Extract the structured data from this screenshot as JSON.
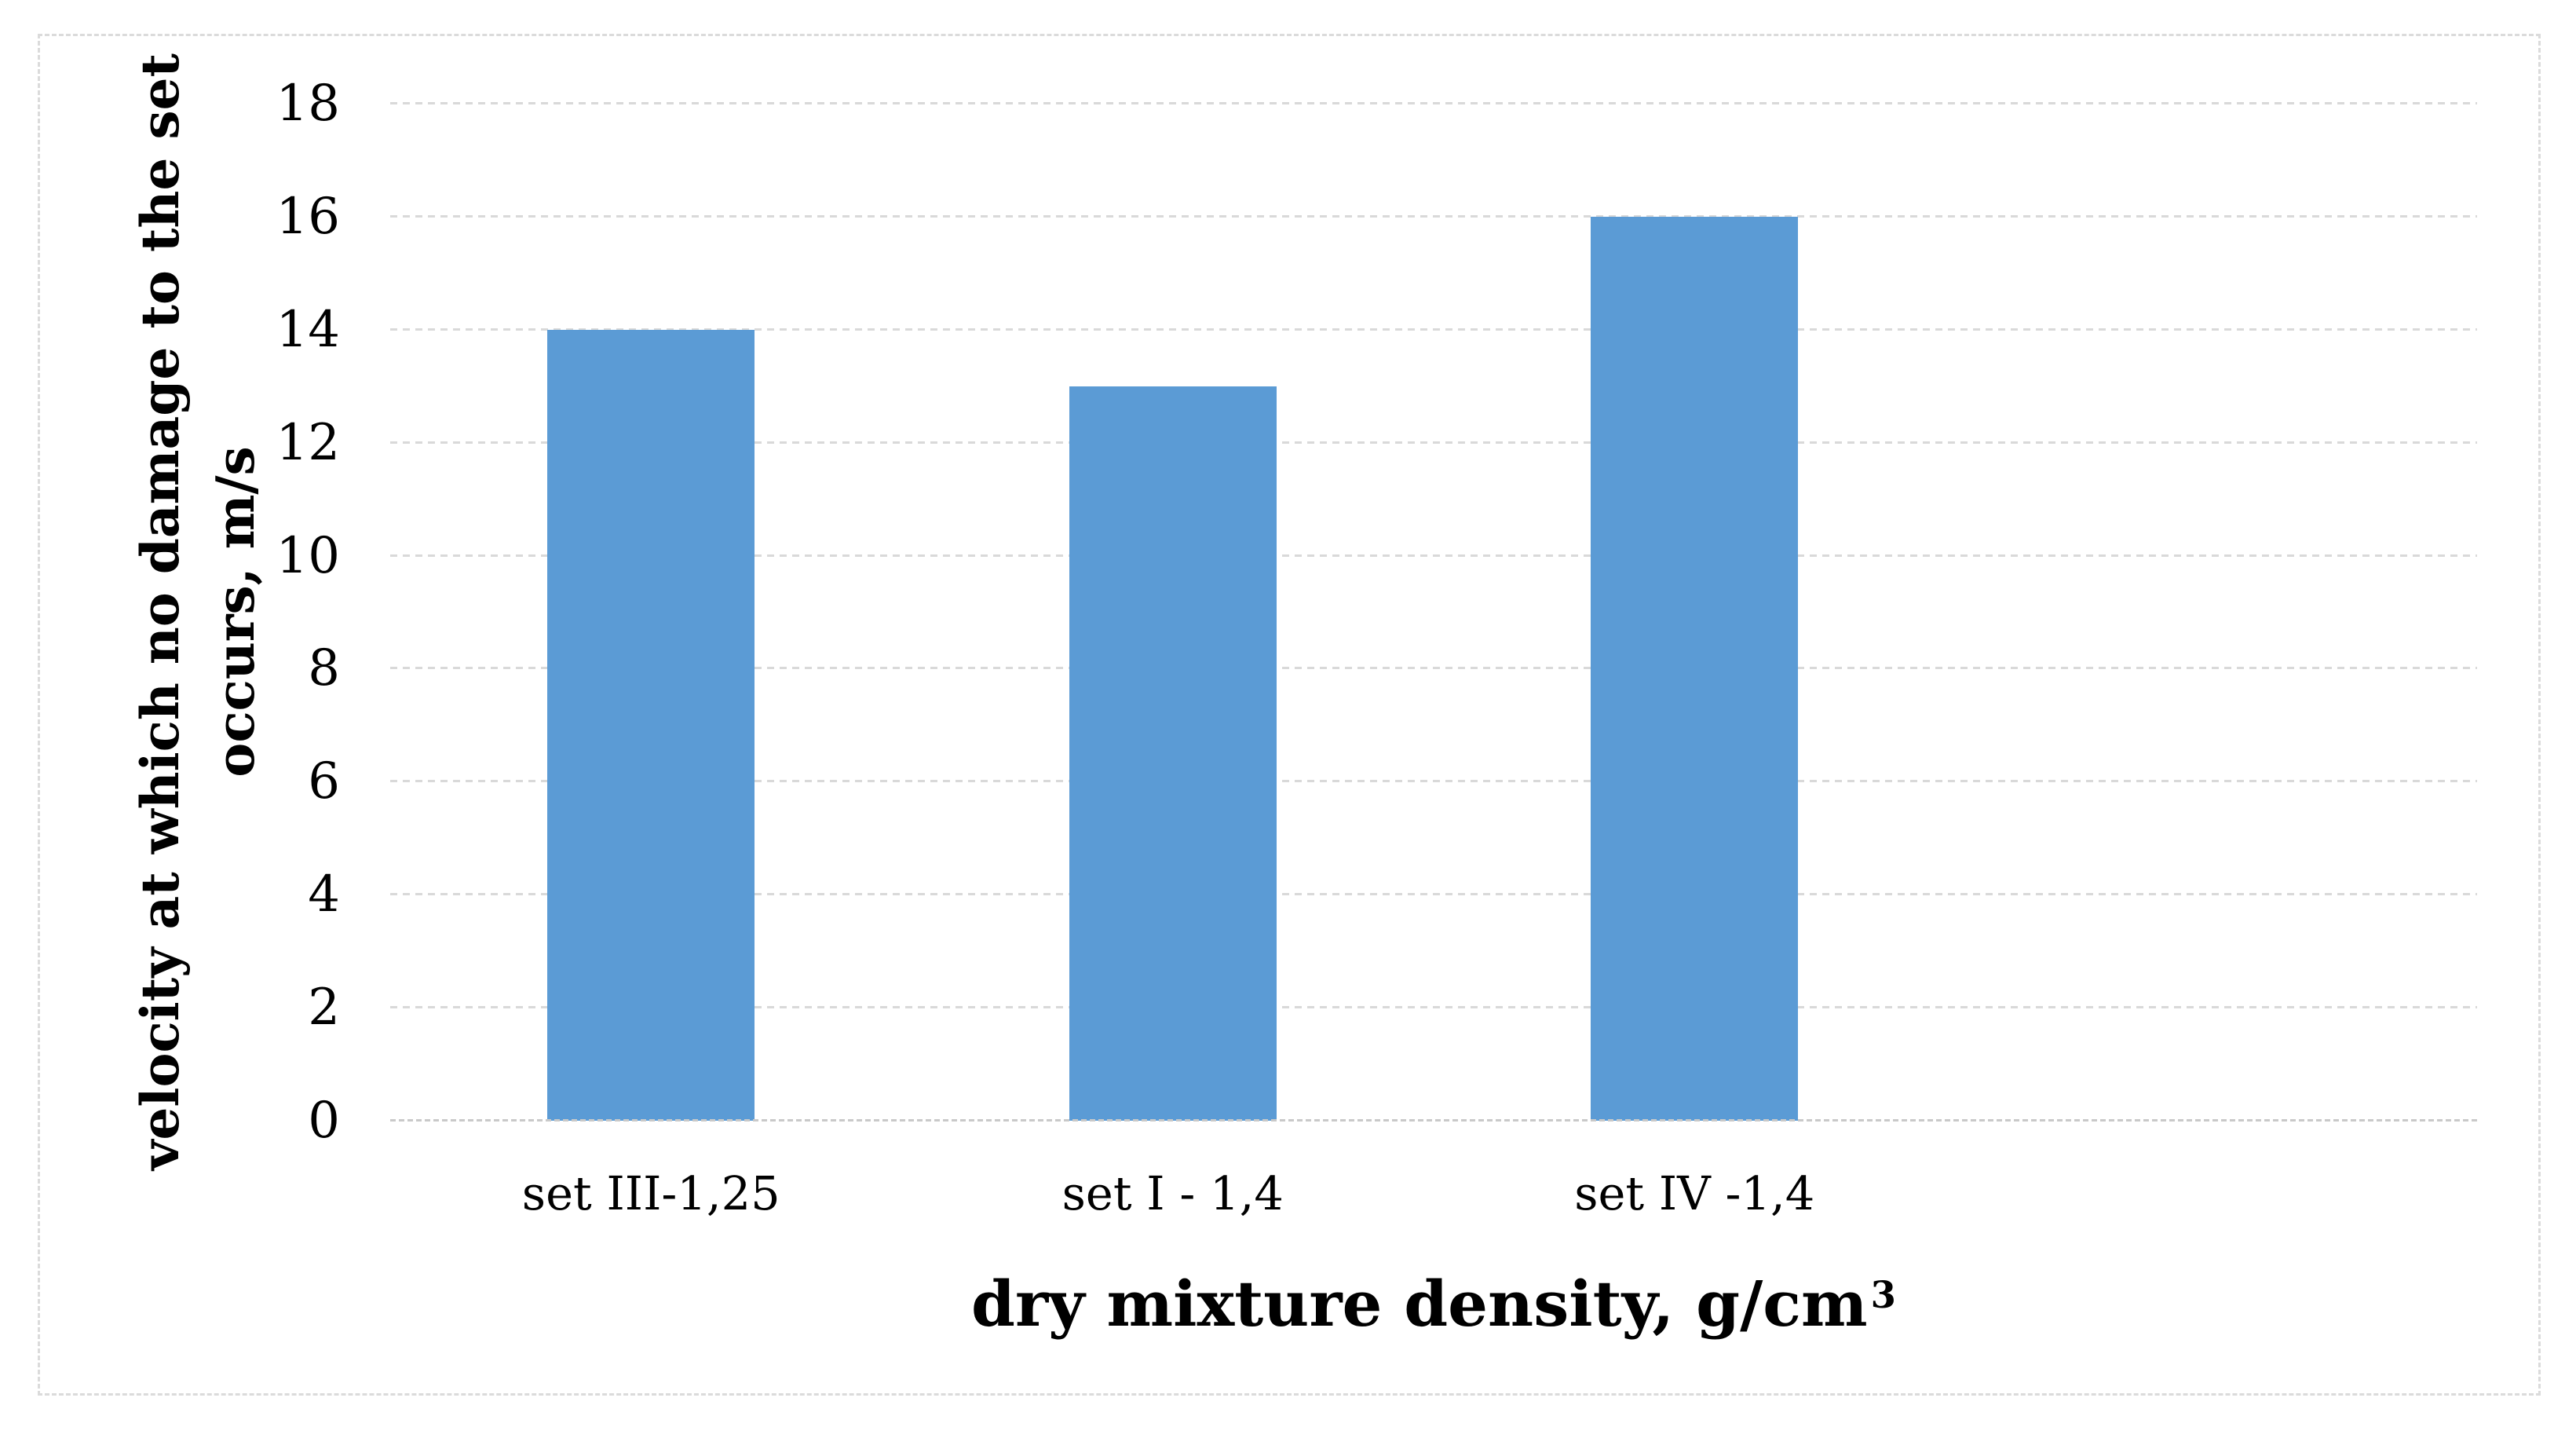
{
  "chart_data": {
    "type": "bar",
    "title": "",
    "categories": [
      "set III-1,25",
      "set I - 1,4",
      "set IV -1,4"
    ],
    "values": [
      14,
      13,
      16
    ],
    "xlabel": "dry mixture density, g/cm",
    "xlabel_superscript": "3",
    "xlabel_full": "dry mixture density, g/cm³",
    "ylabel": "velocity at which no damage to the set occurs, m/s",
    "ylabel_lines": [
      "velocity at which no damage to the set",
      "occurs, m/s"
    ],
    "yticks": [
      0,
      2,
      4,
      6,
      8,
      10,
      12,
      14,
      16,
      18
    ],
    "ylim": [
      0,
      18
    ],
    "x_slot_count": 4,
    "grid": "horizontal-dashed",
    "legend": "none"
  },
  "colors": {
    "bar_fill": "#5B9BD5",
    "gridline": "#D9D9D9",
    "axis_line": "#C9C9C9",
    "chart_border": "#DBDBDB",
    "text": "#000000",
    "background": "#FFFFFF"
  }
}
